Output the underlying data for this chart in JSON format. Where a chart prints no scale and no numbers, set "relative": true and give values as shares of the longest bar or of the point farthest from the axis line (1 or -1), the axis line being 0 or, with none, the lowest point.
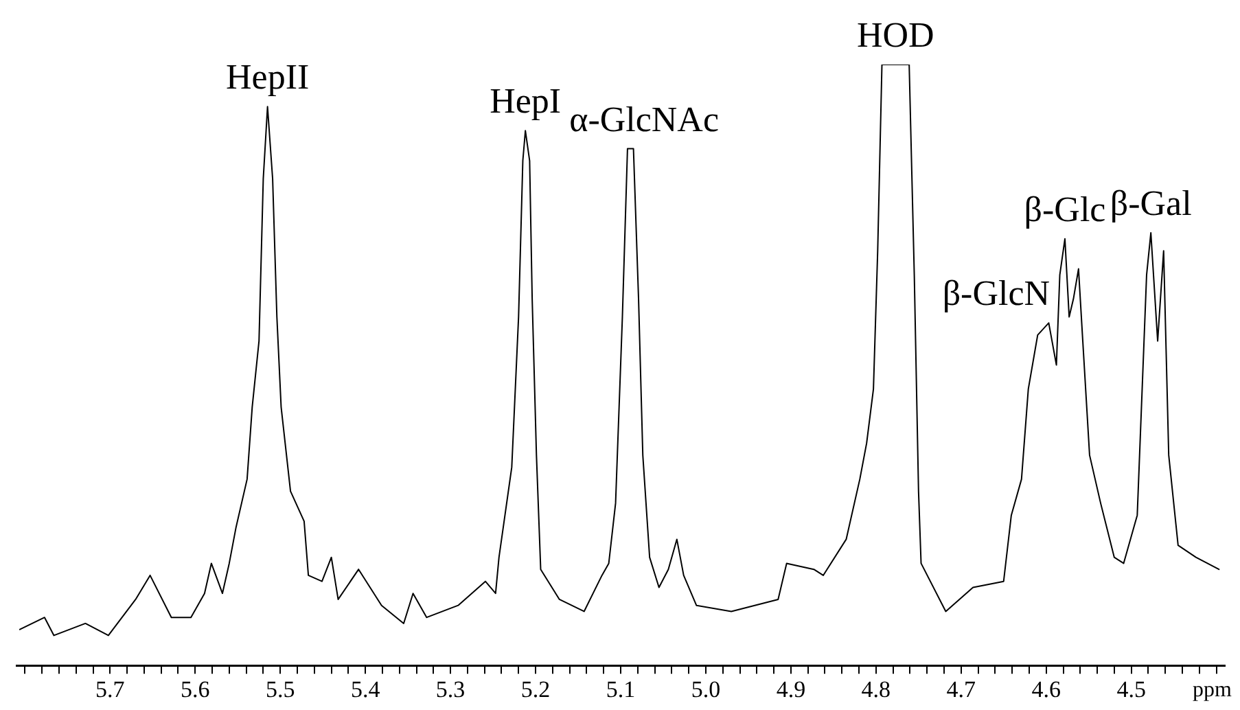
{
  "chart_data": {
    "type": "line",
    "xlabel": "ppm",
    "relative": true,
    "color": "#000000",
    "marker": "none",
    "legend": false,
    "grid": false,
    "xlim": [
      5.81,
      4.39
    ],
    "xticks": [
      {
        "value": 5.8,
        "label": null
      },
      {
        "value": 5.78,
        "label": null
      },
      {
        "value": 5.76,
        "label": null
      },
      {
        "value": 5.74,
        "label": null
      },
      {
        "value": 5.72,
        "label": null
      },
      5.7,
      {
        "value": 5.68,
        "label": null
      },
      {
        "value": 5.66,
        "label": null
      },
      {
        "value": 5.64,
        "label": null
      },
      {
        "value": 5.62,
        "label": null
      },
      5.6,
      {
        "value": 5.58,
        "label": null
      },
      {
        "value": 5.56,
        "label": null
      },
      {
        "value": 5.54,
        "label": null
      },
      {
        "value": 5.52,
        "label": null
      },
      5.5,
      {
        "value": 5.48,
        "label": null
      },
      {
        "value": 5.46,
        "label": null
      },
      {
        "value": 5.44,
        "label": null
      },
      {
        "value": 5.42,
        "label": null
      },
      5.4,
      {
        "value": 5.38,
        "label": null
      },
      {
        "value": 5.36,
        "label": null
      },
      {
        "value": 5.34,
        "label": null
      },
      {
        "value": 5.32,
        "label": null
      },
      5.3,
      {
        "value": 5.28,
        "label": null
      },
      {
        "value": 5.26,
        "label": null
      },
      {
        "value": 5.24,
        "label": null
      },
      {
        "value": 5.22,
        "label": null
      },
      5.2,
      {
        "value": 5.18,
        "label": null
      },
      {
        "value": 5.16,
        "label": null
      },
      {
        "value": 5.14,
        "label": null
      },
      {
        "value": 5.12,
        "label": null
      },
      5.1,
      {
        "value": 5.08,
        "label": null
      },
      {
        "value": 5.06,
        "label": null
      },
      {
        "value": 5.04,
        "label": null
      },
      {
        "value": 5.02,
        "label": null
      },
      {
        "value": 5,
        "label": "5.0"
      },
      {
        "value": 4.98,
        "label": null
      },
      {
        "value": 4.96,
        "label": null
      },
      {
        "value": 4.94,
        "label": null
      },
      {
        "value": 4.92,
        "label": null
      },
      4.9,
      {
        "value": 4.88,
        "label": null
      },
      {
        "value": 4.86,
        "label": null
      },
      {
        "value": 4.84,
        "label": null
      },
      {
        "value": 4.82,
        "label": null
      },
      4.8,
      {
        "value": 4.78,
        "label": null
      },
      {
        "value": 4.76,
        "label": null
      },
      {
        "value": 4.74,
        "label": null
      },
      {
        "value": 4.72,
        "label": null
      },
      4.7,
      {
        "value": 4.68,
        "label": null
      },
      {
        "value": 4.66,
        "label": null
      },
      {
        "value": 4.64,
        "label": null
      },
      {
        "value": 4.62,
        "label": null
      },
      4.6,
      {
        "value": 4.58,
        "label": null
      },
      {
        "value": 4.56,
        "label": null
      },
      {
        "value": 4.54,
        "label": null
      },
      {
        "value": 4.52,
        "label": null
      },
      4.5,
      {
        "value": 4.48,
        "label": null
      },
      {
        "value": 4.46,
        "label": null
      },
      {
        "value": 4.44,
        "label": null
      },
      {
        "value": 4.42,
        "label": null
      },
      {
        "value": 4.4,
        "label": null
      }
    ],
    "x": [
      5.806,
      5.777,
      5.766,
      5.729,
      5.702,
      5.67,
      5.653,
      5.628,
      5.605,
      5.589,
      5.581,
      5.568,
      5.56,
      5.552,
      5.539,
      5.533,
      5.525,
      5.52,
      5.515,
      5.509,
      5.504,
      5.499,
      5.488,
      5.472,
      5.467,
      5.451,
      5.44,
      5.432,
      5.408,
      5.381,
      5.355,
      5.344,
      5.328,
      5.291,
      5.259,
      5.247,
      5.243,
      5.234,
      5.228,
      5.22,
      5.215,
      5.212,
      5.207,
      5.204,
      5.199,
      5.194,
      5.172,
      5.143,
      5.122,
      5.114,
      5.106,
      5.098,
      5.092,
      5.085,
      5.079,
      5.074,
      5.066,
      5.055,
      5.044,
      5.034,
      5.026,
      5.011,
      4.97,
      4.915,
      4.905,
      4.873,
      4.862,
      4.835,
      4.819,
      4.811,
      4.803,
      4.798,
      4.793,
      4.761,
      4.755,
      4.75,
      4.747,
      4.718,
      4.686,
      4.65,
      4.641,
      4.629,
      4.621,
      4.61,
      4.597,
      4.588,
      4.584,
      4.578,
      4.573,
      4.568,
      4.562,
      4.557,
      4.549,
      4.536,
      4.52,
      4.509,
      4.493,
      4.482,
      4.477,
      4.469,
      4.462,
      4.456,
      4.445,
      4.424,
      4.397
    ],
    "values": [
      0.06,
      0.08,
      0.05,
      0.07,
      0.05,
      0.11,
      0.15,
      0.08,
      0.08,
      0.12,
      0.17,
      0.12,
      0.17,
      0.23,
      0.31,
      0.43,
      0.54,
      0.81,
      0.93,
      0.81,
      0.58,
      0.43,
      0.29,
      0.24,
      0.15,
      0.14,
      0.18,
      0.11,
      0.16,
      0.1,
      0.07,
      0.12,
      0.08,
      0.1,
      0.14,
      0.12,
      0.18,
      0.27,
      0.33,
      0.58,
      0.84,
      0.89,
      0.84,
      0.61,
      0.35,
      0.16,
      0.11,
      0.09,
      0.15,
      0.17,
      0.27,
      0.58,
      0.86,
      0.86,
      0.61,
      0.35,
      0.18,
      0.13,
      0.16,
      0.21,
      0.15,
      0.1,
      0.09,
      0.11,
      0.17,
      0.16,
      0.15,
      0.21,
      0.31,
      0.37,
      0.46,
      0.69,
      1,
      1,
      0.65,
      0.29,
      0.17,
      0.09,
      0.13,
      0.14,
      0.25,
      0.31,
      0.46,
      0.55,
      0.57,
      0.5,
      0.65,
      0.71,
      0.58,
      0.61,
      0.66,
      0.54,
      0.35,
      0.27,
      0.18,
      0.17,
      0.25,
      0.65,
      0.72,
      0.54,
      0.69,
      0.35,
      0.2,
      0.18,
      0.16
    ],
    "annotations": [
      {
        "text": "HepII",
        "x": 5.515,
        "y": 0.93
      },
      {
        "text": "HepI",
        "x": 5.212,
        "y": 0.89
      },
      {
        "text": "α-GlcNAc",
        "x": 5.088,
        "y": 0.86
      },
      {
        "text": "HOD",
        "x": 4.777,
        "y": 1
      },
      {
        "text": "β-GlcN",
        "x": 4.597,
        "y": 0.57
      },
      {
        "text": "β-Glc",
        "x": 4.578,
        "y": 0.71
      },
      {
        "text": "β-Gal",
        "x": 4.477,
        "y": 0.72
      }
    ]
  }
}
